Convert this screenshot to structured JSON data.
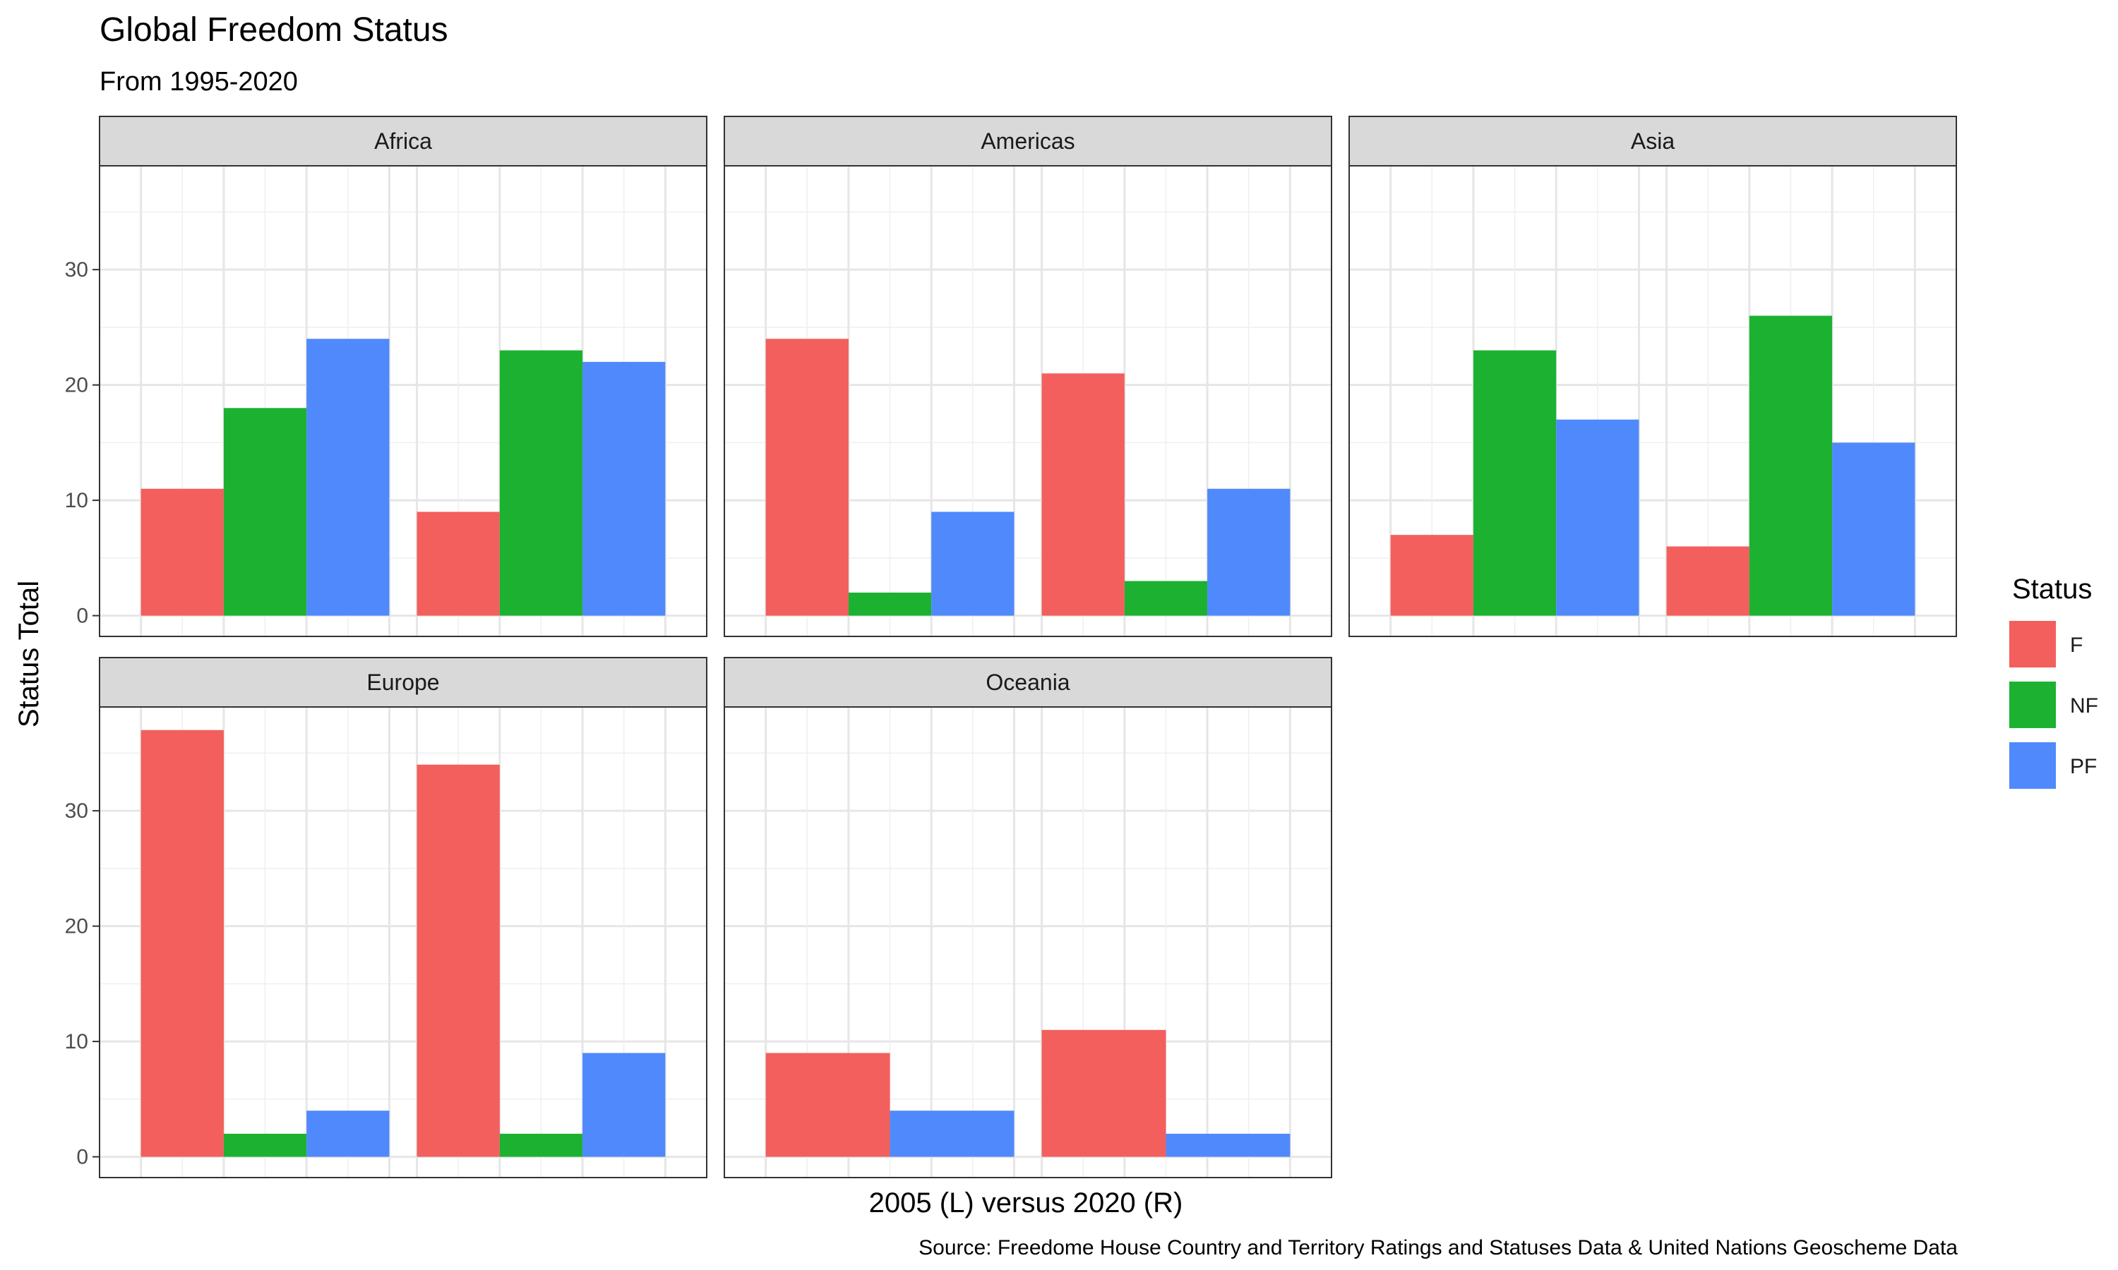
{
  "chart_data": {
    "type": "bar",
    "title": "Global Freedom Status",
    "subtitle": "From 1995-2020",
    "xlabel": "2005 (L) versus 2020 (R)",
    "ylabel": "Status Total",
    "caption": "Source: Freedome House Country and Territory Ratings and Statuses Data & United Nations Geoscheme Data",
    "ylim": [
      -1.8,
      39
    ],
    "yticks": [
      0,
      10,
      20,
      30
    ],
    "grid": true,
    "legend": {
      "title": "Status",
      "placement": "right",
      "items": [
        {
          "name": "F",
          "color": "#F25F5C"
        },
        {
          "name": "NF",
          "color": "#1CB131"
        },
        {
          "name": "PF",
          "color": "#4F89FC"
        }
      ]
    },
    "categories": [
      "2005",
      "2020"
    ],
    "facets": [
      {
        "name": "Africa",
        "values": {
          "2005": {
            "F": 11,
            "NF": 18,
            "PF": 24
          },
          "2020": {
            "F": 9,
            "NF": 23,
            "PF": 22
          }
        }
      },
      {
        "name": "Americas",
        "values": {
          "2005": {
            "F": 24,
            "NF": 2,
            "PF": 9
          },
          "2020": {
            "F": 21,
            "NF": 3,
            "PF": 11
          }
        }
      },
      {
        "name": "Asia",
        "values": {
          "2005": {
            "F": 7,
            "NF": 23,
            "PF": 17
          },
          "2020": {
            "F": 6,
            "NF": 26,
            "PF": 15
          }
        }
      },
      {
        "name": "Europe",
        "values": {
          "2005": {
            "F": 37,
            "NF": 2,
            "PF": 4
          },
          "2020": {
            "F": 34,
            "NF": 2,
            "PF": 9
          }
        }
      },
      {
        "name": "Oceania",
        "values": {
          "2005": {
            "F": 9,
            "PF": 4
          },
          "2020": {
            "F": 11,
            "PF": 2
          }
        }
      }
    ]
  }
}
